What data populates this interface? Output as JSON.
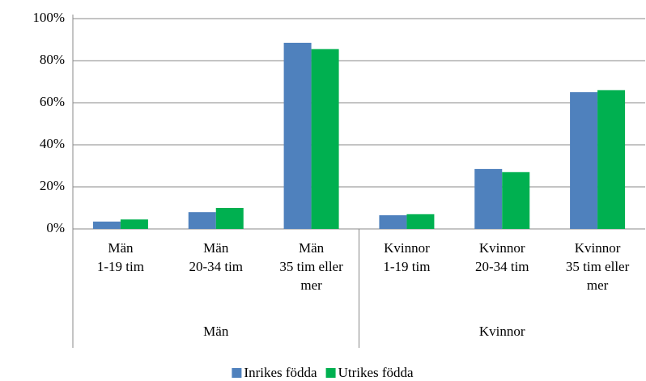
{
  "chart_data": {
    "type": "bar",
    "categories": [
      [
        "Män",
        "1-19 tim"
      ],
      [
        "Män",
        "20-34 tim"
      ],
      [
        "Män",
        "35 tim eller",
        "mer"
      ],
      [
        "Kvinnor",
        "1-19 tim"
      ],
      [
        "Kvinnor",
        "20-34 tim"
      ],
      [
        "Kvinnor",
        "35 tim eller",
        "mer"
      ]
    ],
    "group_labels": [
      "Män",
      "Kvinnor"
    ],
    "series": [
      {
        "name": "Inrikes födda",
        "color": "#4f81bd",
        "values": [
          3.5,
          8,
          88.5,
          6.5,
          28.5,
          65
        ]
      },
      {
        "name": "Utrikes födda",
        "color": "#00b050",
        "values": [
          4.5,
          10,
          85.5,
          7,
          27,
          66
        ]
      }
    ],
    "ylim": [
      0,
      100
    ],
    "yticks": [
      {
        "value": 0,
        "label": "0%"
      },
      {
        "value": 20,
        "label": "20%"
      },
      {
        "value": 40,
        "label": "40%"
      },
      {
        "value": 60,
        "label": "60%"
      },
      {
        "value": 80,
        "label": "80%"
      },
      {
        "value": 100,
        "label": "100%"
      }
    ],
    "grid": true,
    "legend": "bottom"
  }
}
